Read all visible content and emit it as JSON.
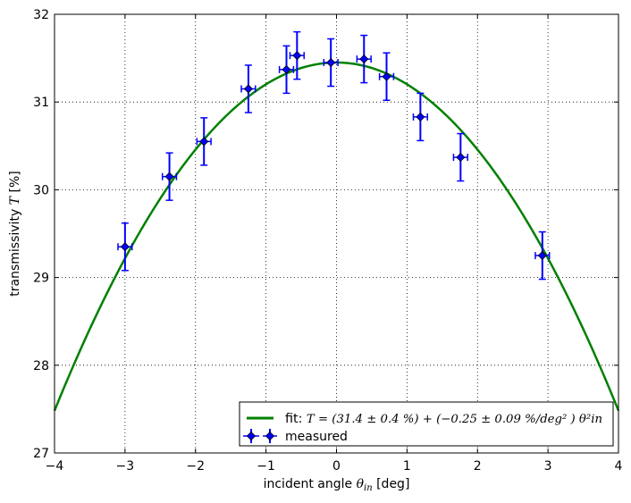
{
  "chart_data": {
    "type": "scatter",
    "xlabel_text": "incident angle ",
    "xlabel_symbol": "θ",
    "xlabel_subscript": "in",
    "xlabel_unit": " [deg]",
    "ylabel_text": "transmissivity ",
    "ylabel_symbol": "T",
    "ylabel_unit": " [%]",
    "xlim": [
      -4,
      4
    ],
    "ylim": [
      27,
      32
    ],
    "xticks": [
      -4,
      -3,
      -2,
      -1,
      0,
      1,
      2,
      3,
      4
    ],
    "yticks": [
      27,
      28,
      29,
      30,
      31,
      32
    ],
    "xtick_labels": [
      "−4",
      "−3",
      "−2",
      "−1",
      "0",
      "1",
      "2",
      "3",
      "4"
    ],
    "ytick_labels": [
      "27",
      "28",
      "29",
      "30",
      "31",
      "32"
    ],
    "grid": true,
    "legend_position": "lower-right",
    "series": [
      {
        "name": "measured",
        "kind": "errorbar",
        "color": "#0000ff",
        "x": [
          -3.0,
          -2.37,
          -1.88,
          -1.25,
          -0.71,
          -0.56,
          -0.08,
          0.39,
          0.71,
          1.19,
          1.76,
          2.92
        ],
        "y": [
          29.35,
          30.15,
          30.55,
          31.15,
          31.37,
          31.53,
          31.45,
          31.49,
          31.29,
          30.83,
          30.37,
          29.25
        ],
        "xerr": 0.1,
        "yerr": 0.27
      },
      {
        "name_prefix": "fit: ",
        "name_formula": "T = (31.4 ± 0.4 %) + (−0.25 ± 0.09 %/deg² ) θ²in",
        "kind": "line",
        "color": "#008000",
        "a": 31.45,
        "b": -0.248
      }
    ]
  }
}
